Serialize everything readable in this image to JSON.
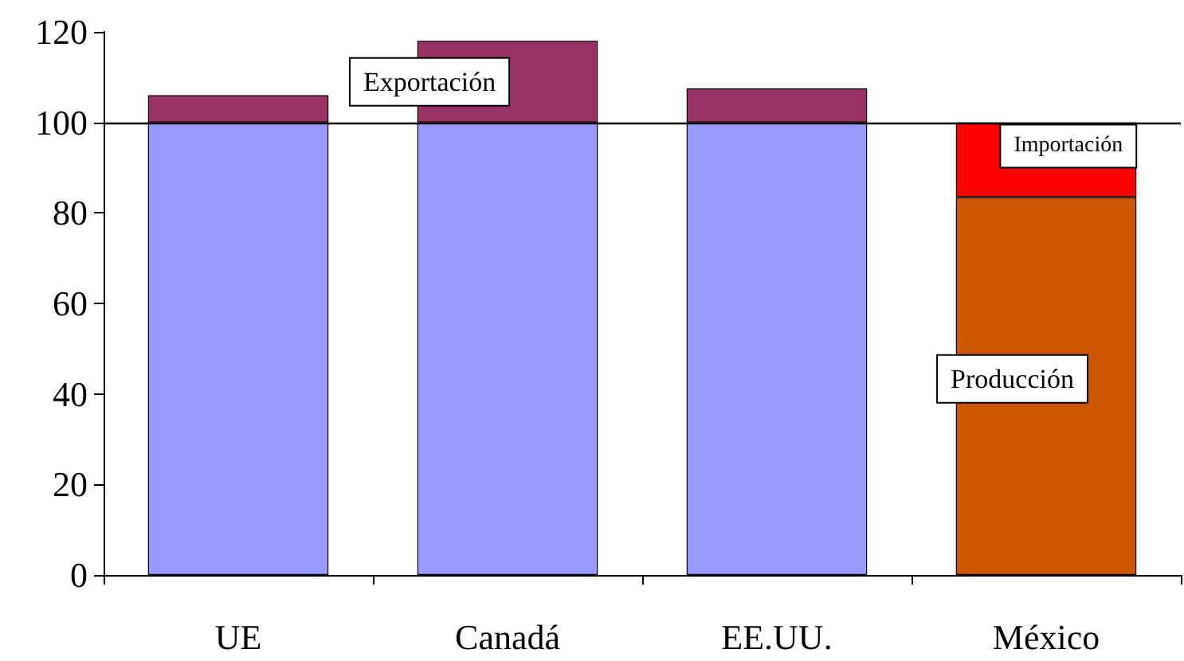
{
  "chart_data": {
    "type": "bar",
    "stacked": true,
    "categories": [
      "UE",
      "Canadá",
      "EE.UU.",
      "México"
    ],
    "series": [
      {
        "name": "Producción",
        "color": "#9999ff",
        "colors": [
          "#9999ff",
          "#9999ff",
          "#9999ff",
          "#cc5500"
        ],
        "values": [
          100,
          100,
          100,
          83.5
        ]
      },
      {
        "name": "Exportación",
        "color": "#993366",
        "values": [
          6,
          18,
          7.5,
          null
        ]
      },
      {
        "name": "Importación",
        "color": "#ff0000",
        "values": [
          null,
          null,
          null,
          16.5
        ]
      }
    ],
    "ylim": [
      0,
      120
    ],
    "yticks": [
      0,
      20,
      40,
      60,
      80,
      100,
      120
    ],
    "grid": false,
    "legend": false,
    "ref_lines": [
      {
        "axis": "y",
        "value": 100,
        "color": "#000000"
      }
    ]
  }
}
